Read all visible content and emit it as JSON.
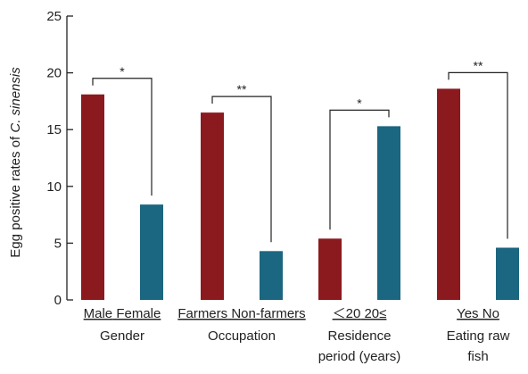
{
  "chart_data": {
    "type": "bar",
    "ylabel_prefix": "Egg positive rates of ",
    "ylabel_italic": "C. sinensis",
    "ylim": [
      0,
      25
    ],
    "yticks": [
      "0",
      "5",
      "10",
      "15",
      "20",
      "25"
    ],
    "colors": {
      "first": "#8B1A1E",
      "second": "#1B6680",
      "axis": "#222222"
    },
    "groups": [
      {
        "labels": [
          "Male",
          "Female"
        ],
        "title_lines": [
          "Gender"
        ],
        "values": [
          18.1,
          8.4
        ],
        "sig": "*"
      },
      {
        "labels": [
          "Farmers",
          "Non-farmers"
        ],
        "title_lines": [
          "Occupation"
        ],
        "values": [
          16.5,
          4.3
        ],
        "sig": "**"
      },
      {
        "labels": [
          "＜20",
          "20≤"
        ],
        "title_lines": [
          "Residence",
          "period (years)"
        ],
        "values": [
          5.4,
          15.3
        ],
        "sig": "*"
      },
      {
        "labels": [
          "Yes",
          "No"
        ],
        "title_lines": [
          "Eating raw",
          "fish"
        ],
        "values": [
          18.6,
          4.6
        ],
        "sig": "**"
      }
    ]
  }
}
